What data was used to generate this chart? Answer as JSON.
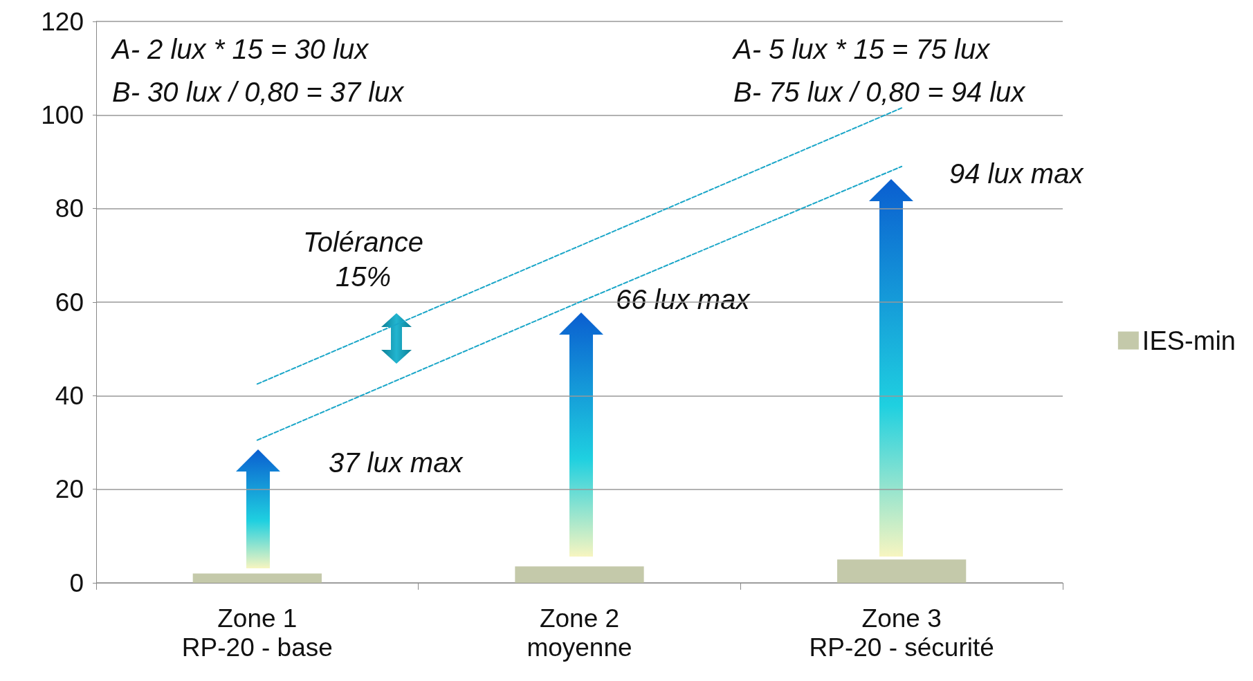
{
  "chart_data": {
    "type": "bar",
    "categories": [
      "Zone 1\nRP-20 - base",
      "Zone 2\nmoyenne",
      "Zone 3\nRP-20 - sécurité"
    ],
    "series": [
      {
        "name": "IES-min",
        "color": "#c4c9aa",
        "values": [
          2,
          3.5,
          5
        ]
      },
      {
        "type": "line",
        "color": "#1aa6c8",
        "values": [
          30.5,
          60,
          89
        ],
        "line_style": "dashed",
        "marker": "none"
      },
      {
        "type": "line",
        "color": "#1aa6c8",
        "values": [
          42.5,
          72,
          101.5
        ],
        "line_style": "dashed",
        "marker": "none"
      }
    ],
    "annotations": [
      "A- 2 lux * 15 = 30 lux",
      "B- 30 lux / 0,80 = 37 lux",
      "A- 5 lux * 15 = 75 lux",
      "B- 75 lux / 0,80 = 94 lux",
      "Tolérance\n15%",
      "37 lux max",
      "66 lux max",
      "94 lux max"
    ],
    "ylim": [
      0,
      120
    ],
    "yticks": [
      0,
      20,
      40,
      60,
      80,
      100,
      120
    ],
    "grid": "y",
    "legend": "right"
  }
}
